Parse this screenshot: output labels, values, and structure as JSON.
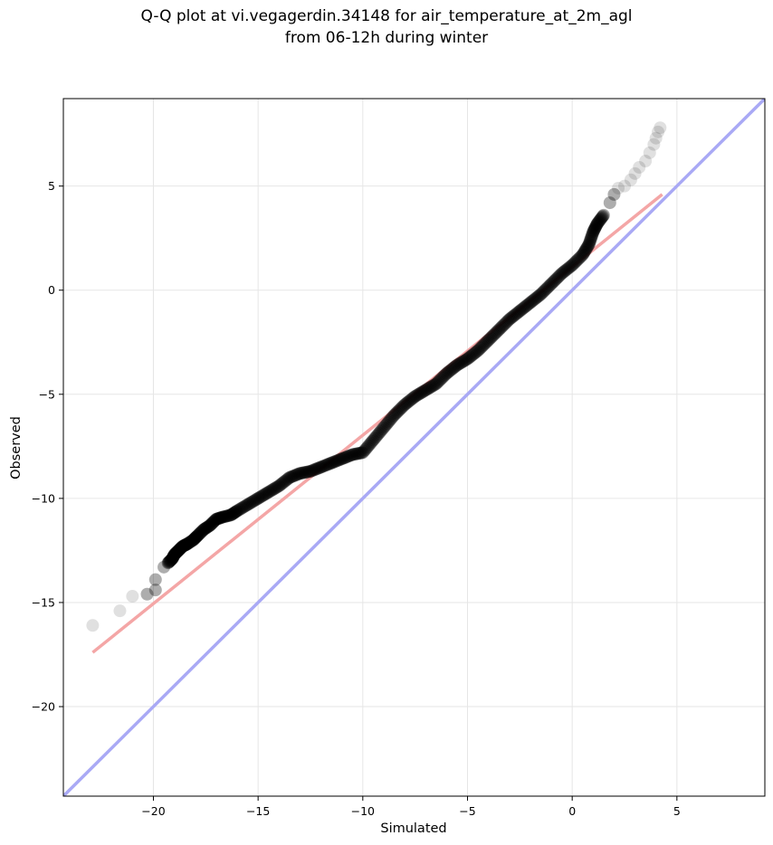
{
  "title_line1": "Q-Q plot at vi.vegagerdin.34148 for air_temperature_at_2m_agl",
  "title_line2": "from 06-12h during winter",
  "chart_data": {
    "type": "scatter",
    "xlabel": "Simulated",
    "ylabel": "Observed",
    "xlim": [
      -24.3,
      9.2
    ],
    "ylim": [
      -24.3,
      9.2
    ],
    "xticks": [
      -20,
      -15,
      -10,
      -5,
      0,
      5
    ],
    "yticks": [
      -20,
      -15,
      -10,
      -5,
      0,
      5
    ],
    "x_tick_labels": [
      "−20",
      "−15",
      "−10",
      "−5",
      "0",
      "5"
    ],
    "y_tick_labels": [
      "−20",
      "−15",
      "−10",
      "−5",
      "0",
      "5"
    ],
    "grid": true,
    "point_color": "#000000",
    "fit_line": {
      "x": [
        -22.9,
        4.3
      ],
      "y": [
        -17.4,
        4.6
      ],
      "color": "#f4a6a6"
    },
    "identity_line": {
      "color": "#a9a9f5"
    },
    "points": {
      "x": [
        -22.9,
        -21.6,
        -21.0,
        -20.3,
        -19.9,
        -19.9,
        -19.5,
        -19.3,
        -19.1,
        -19.0,
        -18.8,
        -18.6,
        -18.4,
        -18.1,
        -17.9,
        -17.6,
        -17.3,
        -17.0,
        -16.7,
        -16.3,
        -16.0,
        -15.5,
        -15.0,
        -14.5,
        -14.0,
        -13.5,
        -13.0,
        -12.5,
        -12.0,
        -11.5,
        -11.0,
        -10.5,
        -10.0,
        -9.5,
        -9.0,
        -8.5,
        -8.0,
        -7.5,
        -7.0,
        -6.5,
        -6.0,
        -5.5,
        -5.0,
        -4.5,
        -4.0,
        -3.5,
        -3.0,
        -2.5,
        -2.0,
        -1.5,
        -1.0,
        -0.5,
        0.0,
        0.5,
        0.8,
        1.0,
        1.2,
        1.5,
        1.8,
        2.0,
        2.2,
        2.5,
        2.8,
        3.0,
        3.2,
        3.5,
        3.7,
        3.9,
        4.0,
        4.1,
        4.2
      ],
      "y": [
        -16.1,
        -15.4,
        -14.7,
        -14.6,
        -14.4,
        -13.9,
        -13.3,
        -13.1,
        -12.9,
        -12.7,
        -12.5,
        -12.3,
        -12.2,
        -12.0,
        -11.8,
        -11.5,
        -11.3,
        -11.0,
        -10.9,
        -10.8,
        -10.6,
        -10.3,
        -10.0,
        -9.7,
        -9.4,
        -9.0,
        -8.8,
        -8.7,
        -8.5,
        -8.3,
        -8.1,
        -7.9,
        -7.8,
        -7.2,
        -6.6,
        -6.0,
        -5.5,
        -5.1,
        -4.8,
        -4.5,
        -4.0,
        -3.6,
        -3.3,
        -2.9,
        -2.4,
        -1.9,
        -1.4,
        -1.0,
        -0.6,
        -0.2,
        0.3,
        0.8,
        1.2,
        1.7,
        2.2,
        2.8,
        3.2,
        3.6,
        4.2,
        4.6,
        4.9,
        5.0,
        5.3,
        5.6,
        5.9,
        6.2,
        6.6,
        7.0,
        7.3,
        7.6,
        7.8
      ]
    }
  }
}
